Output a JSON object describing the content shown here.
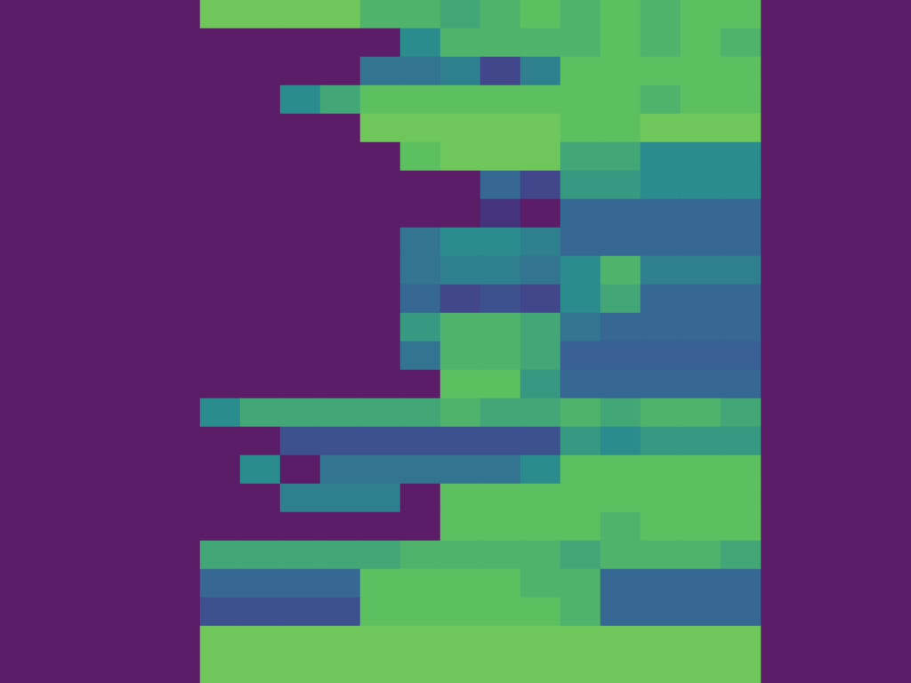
{
  "chart_data": {
    "type": "heatmap",
    "x": [
      null,
      null,
      null,
      null,
      null,
      null,
      null,
      null,
      null,
      null,
      null,
      null,
      null,
      null
    ],
    "categories": [
      null,
      null,
      null,
      null,
      null,
      null,
      null,
      null,
      null,
      null,
      null,
      null,
      null,
      null,
      null,
      null,
      null,
      null,
      null,
      null,
      null,
      null,
      null,
      null
    ],
    "cells": [
      [
        0.85,
        0.85,
        0.85,
        0.85,
        0.75,
        0.75,
        0.7,
        0.75,
        0.8,
        0.75,
        0.8,
        0.75,
        0.8,
        0.8
      ],
      [
        0,
        0,
        0,
        0,
        0,
        0.6,
        0.75,
        0.75,
        0.75,
        0.75,
        0.8,
        0.75,
        0.8,
        0.75
      ],
      [
        0,
        0,
        0,
        0,
        0.5,
        0.5,
        0.55,
        0.3,
        0.55,
        0.8,
        0.8,
        0.8,
        0.8,
        0.8
      ],
      [
        0,
        0,
        0.6,
        0.7,
        0.8,
        0.8,
        0.8,
        0.8,
        0.8,
        0.8,
        0.8,
        0.75,
        0.8,
        0.8
      ],
      [
        0,
        0,
        0,
        0,
        0.85,
        0.85,
        0.85,
        0.85,
        0.85,
        0.8,
        0.8,
        0.85,
        0.85,
        0.85
      ],
      [
        0,
        0,
        0,
        0,
        0,
        0.8,
        0.85,
        0.85,
        0.85,
        0.7,
        0.7,
        0.6,
        0.6,
        0.6
      ],
      [
        0,
        0,
        0,
        0,
        0,
        0,
        0,
        0.45,
        0.3,
        0.65,
        0.65,
        0.6,
        0.6,
        0.6
      ],
      [
        0,
        0,
        0,
        0,
        0,
        0,
        0,
        0.2,
        0,
        0.45,
        0.45,
        0.45,
        0.45,
        0.45
      ],
      [
        0,
        0,
        0,
        0,
        0,
        0.5,
        0.6,
        0.6,
        0.55,
        0.45,
        0.45,
        0.45,
        0.45,
        0.45
      ],
      [
        0,
        0,
        0,
        0,
        0,
        0.5,
        0.55,
        0.55,
        0.5,
        0.6,
        0.75,
        0.55,
        0.55,
        0.55
      ],
      [
        0,
        0,
        0,
        0,
        0,
        0.45,
        0.3,
        0.35,
        0.3,
        0.6,
        0.7,
        0.45,
        0.45,
        0.45
      ],
      [
        0,
        0,
        0,
        0,
        0,
        0.65,
        0.75,
        0.75,
        0.7,
        0.5,
        0.45,
        0.45,
        0.45,
        0.45
      ],
      [
        0,
        0,
        0,
        0,
        0,
        0.5,
        0.75,
        0.75,
        0.7,
        0.42,
        0.42,
        0.42,
        0.42,
        0.42
      ],
      [
        0,
        0,
        0,
        0,
        0,
        0,
        0.8,
        0.8,
        0.65,
        0.45,
        0.45,
        0.45,
        0.45,
        0.45
      ],
      [
        0.6,
        0.7,
        0.7,
        0.7,
        0.7,
        0.7,
        0.75,
        0.7,
        0.7,
        0.75,
        0.7,
        0.75,
        0.75,
        0.7
      ],
      [
        0,
        0,
        0.35,
        0.35,
        0.35,
        0.35,
        0.35,
        0.35,
        0.35,
        0.65,
        0.6,
        0.65,
        0.65,
        0.65
      ],
      [
        0,
        0.6,
        0,
        0.5,
        0.5,
        0.5,
        0.5,
        0.5,
        0.6,
        0.8,
        0.8,
        0.8,
        0.8,
        0.8
      ],
      [
        0,
        0,
        0.55,
        0.55,
        0.55,
        0,
        0.8,
        0.8,
        0.8,
        0.8,
        0.8,
        0.8,
        0.8,
        0.8
      ],
      [
        0,
        0,
        0,
        0,
        0,
        0,
        0.8,
        0.8,
        0.8,
        0.8,
        0.75,
        0.8,
        0.8,
        0.8
      ],
      [
        0.7,
        0.7,
        0.7,
        0.7,
        0.7,
        0.75,
        0.75,
        0.75,
        0.75,
        0.7,
        0.75,
        0.75,
        0.75,
        0.7
      ],
      [
        0.45,
        0.45,
        0.45,
        0.45,
        0.8,
        0.8,
        0.8,
        0.8,
        0.75,
        0.75,
        0.45,
        0.45,
        0.45,
        0.45
      ],
      [
        0.35,
        0.35,
        0.35,
        0.35,
        0.8,
        0.8,
        0.8,
        0.8,
        0.8,
        0.75,
        0.45,
        0.45,
        0.45,
        0.45
      ],
      [
        0.85,
        0.85,
        0.85,
        0.85,
        0.85,
        0.85,
        0.85,
        0.85,
        0.85,
        0.85,
        0.85,
        0.85,
        0.85,
        0.85
      ],
      [
        0.85,
        0.85,
        0.85,
        0.85,
        0.85,
        0.85,
        0.85,
        0.85,
        0.85,
        0.85,
        0.85,
        0.85,
        0.85,
        0.85
      ]
    ],
    "color_range": [
      0,
      1
    ],
    "grid": false,
    "tick_labels": false
  }
}
